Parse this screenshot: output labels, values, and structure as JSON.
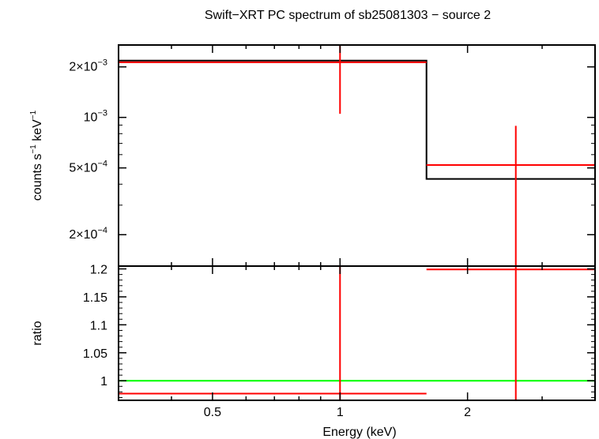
{
  "title": "Swift−XRT PC spectrum of sb25081303 − source 2",
  "colors": {
    "axis": "#000000",
    "model": "#000000",
    "data": "#ff0000",
    "unity": "#00ff00",
    "background": "#ffffff"
  },
  "chart_data": [
    {
      "panel": "spectrum",
      "type": "line",
      "title": "Swift−XRT PC spectrum of sb25081303 − source 2",
      "xlabel": "",
      "ylabel_main": "counts s",
      "ylabel_exp1": "−1",
      "ylabel_mid": " keV",
      "ylabel_exp2": "−1",
      "x_scale": "log",
      "y_scale": "log",
      "xlim": [
        0.3,
        4.0
      ],
      "ylim": [
        0.00013,
        0.0027
      ],
      "yticks": [
        {
          "value": 0.002,
          "mant": "2×10",
          "exp": "−3"
        },
        {
          "value": 0.001,
          "mant": "10",
          "exp": "−3"
        },
        {
          "value": 0.0005,
          "mant": "5×10",
          "exp": "−4"
        },
        {
          "value": 0.0002,
          "mant": "2×10",
          "exp": "−4"
        }
      ],
      "series": [
        {
          "role": "model",
          "color": "#000000",
          "steps": [
            {
              "x0": 0.3,
              "x1": 1.6,
              "y": 0.00218
            },
            {
              "x0": 1.6,
              "x1": 4.0,
              "y": 0.00043
            }
          ]
        },
        {
          "role": "data",
          "color": "#ff0000",
          "points": [
            {
              "x": 1.0,
              "xlo": 0.3,
              "xhi": 1.6,
              "y": 0.00213,
              "ylo": 0.00105,
              "yhi": 0.0027
            },
            {
              "x": 2.6,
              "xlo": 1.6,
              "xhi": 4.0,
              "y": 0.00052,
              "ylo": 0.00013,
              "yhi": 0.00089
            }
          ]
        }
      ]
    },
    {
      "panel": "ratio",
      "type": "scatter",
      "xlabel": "Energy (keV)",
      "ylabel": "ratio",
      "x_scale": "log",
      "y_scale": "linear",
      "xlim": [
        0.3,
        4.0
      ],
      "ylim": [
        0.965,
        1.205
      ],
      "xticks": [
        {
          "value": 0.5,
          "label": "0.5"
        },
        {
          "value": 1,
          "label": "1"
        },
        {
          "value": 2,
          "label": "2"
        }
      ],
      "yticks": [
        {
          "value": 1.2,
          "label": "1.2"
        },
        {
          "value": 1.15,
          "label": "1.15"
        },
        {
          "value": 1.1,
          "label": "1.1"
        },
        {
          "value": 1.05,
          "label": "1.05"
        },
        {
          "value": 1,
          "label": "1"
        }
      ],
      "reference_line": {
        "y": 1,
        "color": "#00ff00"
      },
      "series": [
        {
          "role": "data",
          "color": "#ff0000",
          "points": [
            {
              "x": 1.0,
              "xlo": 0.3,
              "xhi": 1.6,
              "y": 0.977,
              "ylo": 0.965,
              "yhi": 1.205
            },
            {
              "x": 2.6,
              "xlo": 1.6,
              "xhi": 4.0,
              "y": 1.199,
              "ylo": 0.965,
              "yhi": 1.205
            }
          ]
        }
      ]
    }
  ]
}
